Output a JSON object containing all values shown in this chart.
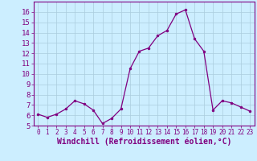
{
  "x": [
    0,
    1,
    2,
    3,
    4,
    5,
    6,
    7,
    8,
    9,
    10,
    11,
    12,
    13,
    14,
    15,
    16,
    17,
    18,
    19,
    20,
    21,
    22,
    23
  ],
  "y": [
    6.1,
    5.8,
    6.1,
    6.6,
    7.4,
    7.1,
    6.5,
    5.2,
    5.7,
    6.6,
    10.5,
    12.2,
    12.5,
    13.7,
    14.2,
    15.8,
    16.2,
    13.4,
    12.2,
    6.5,
    7.4,
    7.2,
    6.8,
    6.4
  ],
  "line_color": "#800080",
  "marker": "o",
  "marker_size": 2,
  "background_color": "#cceeff",
  "grid_color": "#aaccdd",
  "xlabel": "Windchill (Refroidissement éolien,°C)",
  "xlim": [
    -0.5,
    23.5
  ],
  "ylim": [
    5,
    17
  ],
  "yticks": [
    5,
    6,
    7,
    8,
    9,
    10,
    11,
    12,
    13,
    14,
    15,
    16
  ],
  "xticks": [
    0,
    1,
    2,
    3,
    4,
    5,
    6,
    7,
    8,
    9,
    10,
    11,
    12,
    13,
    14,
    15,
    16,
    17,
    18,
    19,
    20,
    21,
    22,
    23
  ],
  "tick_color": "#800080",
  "spine_color": "#800080",
  "ytick_fontsize": 6.5,
  "xtick_fontsize": 5.5,
  "xlabel_fontsize": 7.0
}
